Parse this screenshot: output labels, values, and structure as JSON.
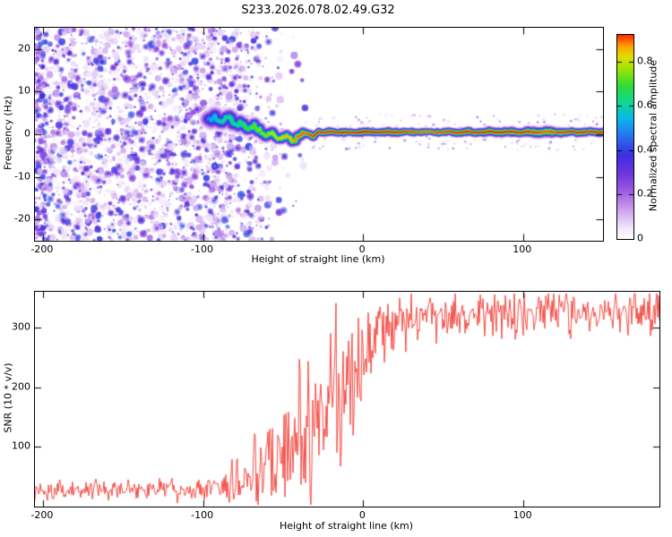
{
  "title": "S233.2026.078.02.49.G32",
  "chart_data": [
    {
      "type": "heatmap",
      "description": "Radio occultation spectrogram: purple speckle noise at low heights converging to a narrow high-amplitude signal band near 0 Hz at higher heights",
      "xlabel": "Height of straight line (km)",
      "ylabel": "Frequency (Hz)",
      "xlim": [
        -205,
        150
      ],
      "ylim": [
        -25,
        25
      ],
      "xticks": [
        -200,
        -100,
        0,
        100
      ],
      "yticks": [
        20,
        10,
        0,
        -10,
        -20
      ],
      "grid": false,
      "colorbar": {
        "label": "Normalized spectral amplitude",
        "ticks": [
          0,
          0.2,
          0.4,
          0.6,
          0.8
        ],
        "range": [
          0,
          0.92
        ],
        "colormap_stops": [
          [
            0.0,
            "#ffffff"
          ],
          [
            0.05,
            "#f3e8fb"
          ],
          [
            0.13,
            "#cda4ef"
          ],
          [
            0.22,
            "#9c5ae0"
          ],
          [
            0.3,
            "#6c34dd"
          ],
          [
            0.38,
            "#3c2fe0"
          ],
          [
            0.46,
            "#2a6cee"
          ],
          [
            0.54,
            "#09b4ee"
          ],
          [
            0.61,
            "#0bd89c"
          ],
          [
            0.69,
            "#2edb39"
          ],
          [
            0.76,
            "#92e40b"
          ],
          [
            0.82,
            "#dfe000"
          ],
          [
            0.87,
            "#ffa400"
          ],
          [
            0.92,
            "#ff2a00"
          ],
          [
            1.0,
            "#c00000"
          ]
        ]
      },
      "noise_field": {
        "x_full_density_until": -85,
        "x_fade_to": -45,
        "residual_density": 0.05,
        "blob_count": 2900,
        "edge_smear_count": 150,
        "max_value": 0.42
      },
      "signal_path": [
        [
          -97,
          3.0,
          0.45,
          1.0
        ],
        [
          -93,
          4.2,
          0.55,
          1.1
        ],
        [
          -88,
          3.0,
          0.6,
          1.1
        ],
        [
          -84,
          4.0,
          0.65,
          1.0
        ],
        [
          -80,
          2.2,
          0.62,
          0.9
        ],
        [
          -76,
          2.8,
          0.65,
          0.9
        ],
        [
          -72,
          1.2,
          0.7,
          0.8
        ],
        [
          -68,
          2.2,
          0.72,
          0.8
        ],
        [
          -64,
          0.8,
          0.75,
          0.8
        ],
        [
          -60,
          -0.6,
          0.75,
          0.8
        ],
        [
          -56,
          0.4,
          0.8,
          0.8
        ],
        [
          -52,
          -1.2,
          0.8,
          0.7
        ],
        [
          -48,
          -0.3,
          0.85,
          0.7
        ],
        [
          -44,
          -1.6,
          0.85,
          0.7
        ],
        [
          -40,
          -0.6,
          0.9,
          0.7
        ],
        [
          -36,
          0.4,
          0.9,
          0.6
        ],
        [
          -32,
          -0.4,
          0.92,
          0.6
        ],
        [
          -28,
          0.3,
          0.95,
          0.55
        ],
        [
          -20,
          0.5,
          0.95,
          0.5
        ],
        [
          -10,
          0.4,
          0.95,
          0.5
        ],
        [
          0,
          0.5,
          0.97,
          0.5
        ],
        [
          20,
          0.5,
          0.95,
          0.5
        ],
        [
          40,
          0.5,
          0.9,
          0.45
        ],
        [
          60,
          0.5,
          0.95,
          0.5
        ],
        [
          80,
          0.5,
          0.95,
          0.55
        ],
        [
          100,
          0.5,
          0.95,
          0.6
        ],
        [
          115,
          0.5,
          0.9,
          0.65
        ],
        [
          130,
          0.5,
          0.95,
          0.5
        ],
        [
          150,
          0.5,
          0.95,
          0.5
        ]
      ]
    },
    {
      "type": "line",
      "xlabel": "Height of straight line (km)",
      "ylabel": "SNR (10 * v/v)",
      "xlim": [
        -205,
        185
      ],
      "ylim": [
        0,
        360
      ],
      "xticks": [
        -200,
        -100,
        0,
        100
      ],
      "yticks": [
        100,
        200,
        300
      ],
      "grid": false,
      "series": [
        {
          "name": "SNR",
          "color": "#f23b33",
          "envelope_mean_amp": [
            [
              -205,
              28,
              18
            ],
            [
              -150,
              28,
              18
            ],
            [
              -100,
              28,
              20
            ],
            [
              -90,
              32,
              25
            ],
            [
              -80,
              40,
              35
            ],
            [
              -70,
              55,
              55
            ],
            [
              -60,
              70,
              75
            ],
            [
              -50,
              90,
              95
            ],
            [
              -40,
              110,
              115
            ],
            [
              -30,
              140,
              130
            ],
            [
              -20,
              170,
              135
            ],
            [
              -10,
              200,
              140
            ],
            [
              -5,
              230,
              120
            ],
            [
              0,
              250,
              100
            ],
            [
              10,
              280,
              70
            ],
            [
              20,
              300,
              55
            ],
            [
              30,
              315,
              45
            ],
            [
              50,
              320,
              42
            ],
            [
              100,
              325,
              42
            ],
            [
              185,
              325,
              42
            ]
          ]
        }
      ]
    }
  ]
}
